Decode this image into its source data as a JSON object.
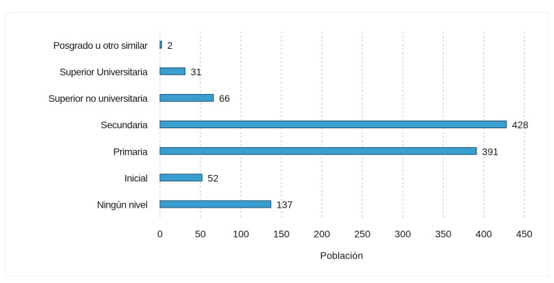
{
  "chart_data": {
    "type": "bar",
    "orientation": "horizontal",
    "categories": [
      "Posgrado u otro similar",
      "Superior Universitaria",
      "Superior no universitaria",
      "Secundaria",
      "Primaria",
      "Inicial",
      "Ningún nivel"
    ],
    "values": [
      2,
      31,
      66,
      428,
      391,
      52,
      137
    ],
    "color": "#3a9fd0",
    "x_label": "Población",
    "xlim": [
      0,
      460
    ],
    "xticks": [
      0,
      50,
      100,
      150,
      200,
      250,
      300,
      350,
      400,
      450
    ],
    "grid": true
  }
}
